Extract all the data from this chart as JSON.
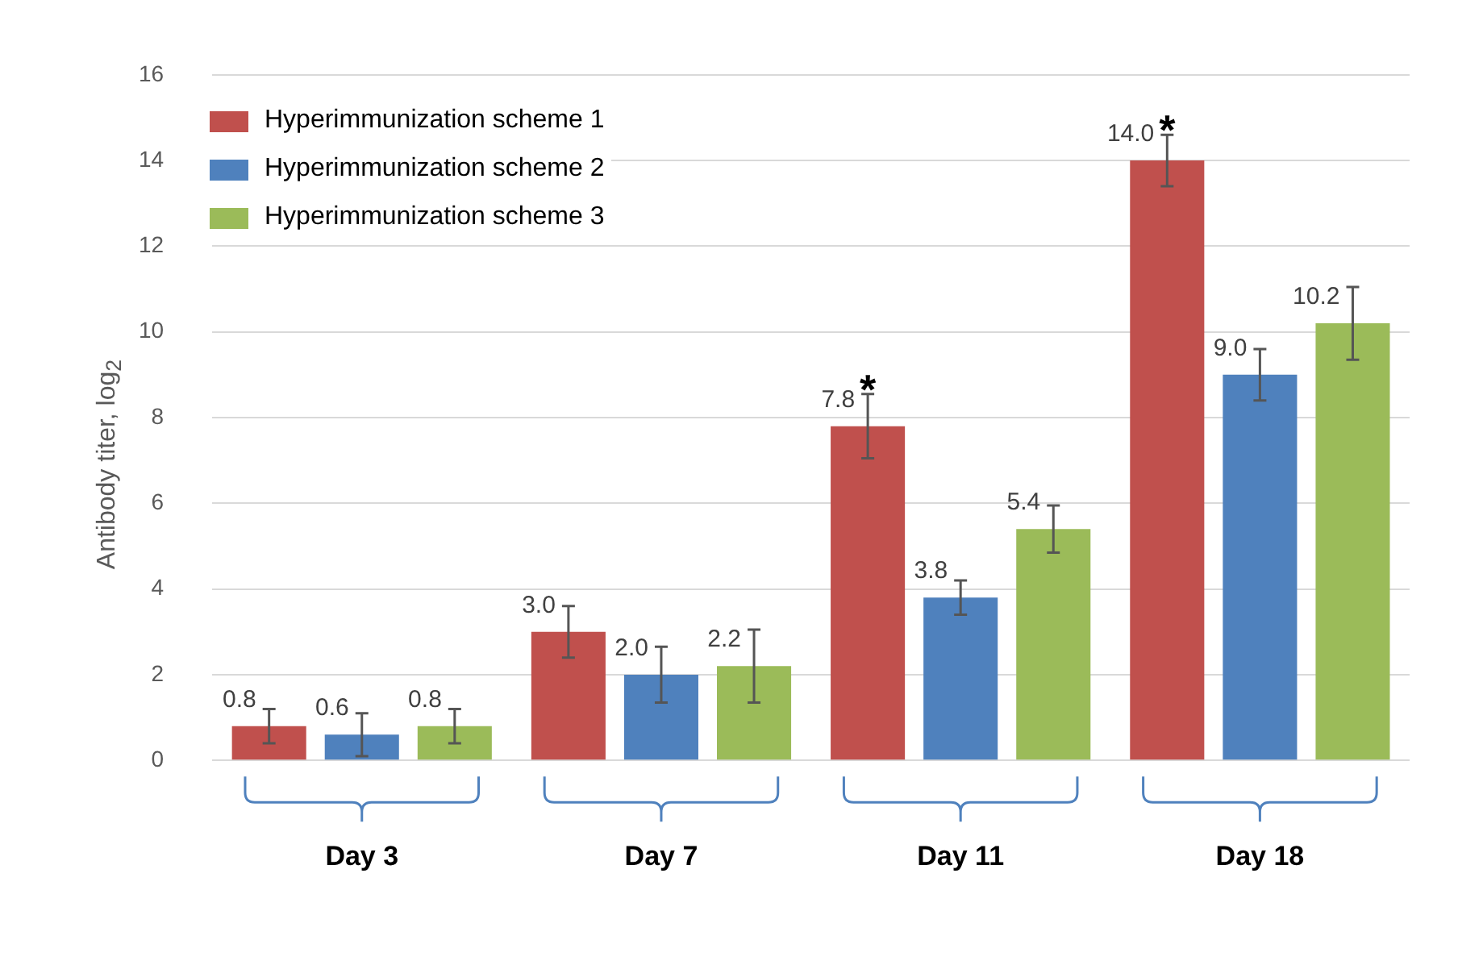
{
  "chart_data": {
    "type": "bar",
    "ylabel": "Antibody titer, log$_{2}$",
    "categories": [
      "Day 3",
      "Day 7",
      "Day 11",
      "Day 18"
    ],
    "series": [
      {
        "name": "Hyperimmunization scheme 1",
        "color": "#c0504d",
        "values": [
          0.8,
          3.0,
          7.8,
          14.0
        ],
        "errors": [
          0.4,
          0.6,
          0.75,
          0.6
        ],
        "value_labels": [
          "0.8",
          "3.0",
          "7.8",
          "14.0"
        ]
      },
      {
        "name": "Hyperimmunization scheme 2",
        "color": "#4f81bd",
        "values": [
          0.6,
          2.0,
          3.8,
          9.0
        ],
        "errors": [
          0.5,
          0.65,
          0.4,
          0.6
        ],
        "value_labels": [
          "0.6",
          "2.0",
          "3.8",
          "9.0"
        ]
      },
      {
        "name": "Hyperimmunization scheme 3",
        "color": "#9bbb59",
        "values": [
          0.8,
          2.2,
          5.4,
          10.2
        ],
        "errors": [
          0.4,
          0.85,
          0.55,
          0.85
        ],
        "value_labels": [
          "0.8",
          "2.2",
          "5.4",
          "10.2"
        ]
      }
    ],
    "ylim": [
      0,
      16
    ],
    "yticks": [
      0,
      2,
      4,
      6,
      8,
      10,
      12,
      14,
      16
    ],
    "grid": "y",
    "legend": "top left",
    "annotations": [
      "*",
      "*"
    ]
  }
}
